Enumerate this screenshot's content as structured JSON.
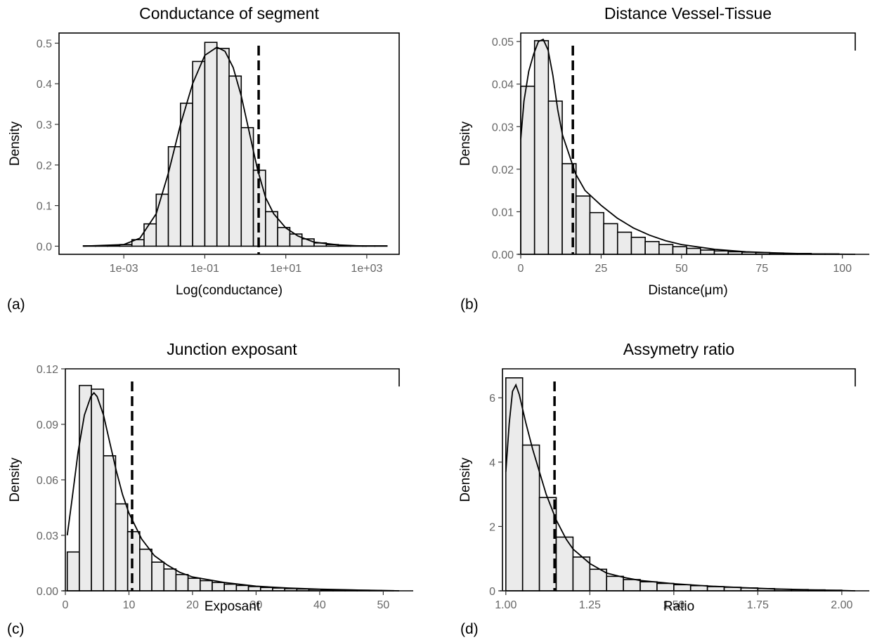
{
  "chart_data": [
    {
      "type": "bar",
      "panel_label": "(a)",
      "title": "Conductance of segment",
      "xlabel": "Log(conductance)",
      "ylabel": "Density",
      "x_scale": "log10",
      "xlim": [
        -4.6,
        3.8
      ],
      "ylim": [
        -0.02,
        0.525
      ],
      "xticks": [
        {
          "value": -3,
          "label": "1e-03"
        },
        {
          "value": -1,
          "label": "1e-01"
        },
        {
          "value": 1,
          "label": "1e+01"
        },
        {
          "value": 3,
          "label": "1e+03"
        }
      ],
      "yticks": [
        {
          "value": 0,
          "label": "0.0"
        },
        {
          "value": 0.1,
          "label": "0.1"
        },
        {
          "value": 0.2,
          "label": "0.2"
        },
        {
          "value": 0.3,
          "label": "0.3"
        },
        {
          "value": 0.4,
          "label": "0.4"
        },
        {
          "value": 0.5,
          "label": "0.5"
        }
      ],
      "bins": [
        [
          -4.0,
          -3.7,
          0.001
        ],
        [
          -3.7,
          -3.4,
          0.001
        ],
        [
          -3.4,
          -3.1,
          0.002
        ],
        [
          -3.1,
          -2.8,
          0.004
        ],
        [
          -2.8,
          -2.5,
          0.016
        ],
        [
          -2.5,
          -2.2,
          0.055
        ],
        [
          -2.2,
          -1.9,
          0.128
        ],
        [
          -1.9,
          -1.6,
          0.245
        ],
        [
          -1.6,
          -1.3,
          0.352
        ],
        [
          -1.3,
          -1.0,
          0.455
        ],
        [
          -1.0,
          -0.7,
          0.502
        ],
        [
          -0.7,
          -0.4,
          0.487
        ],
        [
          -0.4,
          -0.1,
          0.419
        ],
        [
          -0.1,
          0.2,
          0.292
        ],
        [
          0.2,
          0.5,
          0.187
        ],
        [
          0.5,
          0.8,
          0.085
        ],
        [
          0.8,
          1.1,
          0.046
        ],
        [
          1.1,
          1.4,
          0.03
        ],
        [
          1.4,
          1.7,
          0.018
        ],
        [
          1.7,
          2.0,
          0.008
        ],
        [
          2.0,
          2.3,
          0.004
        ],
        [
          2.3,
          2.6,
          0.002
        ],
        [
          2.6,
          2.9,
          0.001
        ],
        [
          2.9,
          3.2,
          0.001
        ],
        [
          3.2,
          3.5,
          0.001
        ]
      ],
      "density": [
        [
          -4.0,
          0.0
        ],
        [
          -3.0,
          0.004
        ],
        [
          -2.6,
          0.02
        ],
        [
          -2.2,
          0.08
        ],
        [
          -1.9,
          0.18
        ],
        [
          -1.6,
          0.3
        ],
        [
          -1.3,
          0.4
        ],
        [
          -1.0,
          0.47
        ],
        [
          -0.7,
          0.49
        ],
        [
          -0.5,
          0.48
        ],
        [
          -0.3,
          0.44
        ],
        [
          -0.1,
          0.37
        ],
        [
          0.1,
          0.28
        ],
        [
          0.3,
          0.19
        ],
        [
          0.5,
          0.12
        ],
        [
          0.7,
          0.08
        ],
        [
          1.0,
          0.045
        ],
        [
          1.3,
          0.025
        ],
        [
          1.7,
          0.01
        ],
        [
          2.3,
          0.003
        ],
        [
          3.0,
          0.0
        ]
      ],
      "vline": 0.33,
      "frame": "full"
    },
    {
      "type": "bar",
      "panel_label": "(b)",
      "title": "Distance Vessel-Tissue",
      "xlabel": "Distance(μm)",
      "ylabel": "Density",
      "xlim": [
        0,
        104
      ],
      "ylim": [
        0,
        0.052
      ],
      "xticks": [
        {
          "value": 0,
          "label": "0"
        },
        {
          "value": 25,
          "label": "25"
        },
        {
          "value": 50,
          "label": "50"
        },
        {
          "value": 75,
          "label": "75"
        },
        {
          "value": 100,
          "label": "100"
        }
      ],
      "yticks": [
        {
          "value": 0,
          "label": "0.00"
        },
        {
          "value": 0.01,
          "label": "0.01"
        },
        {
          "value": 0.02,
          "label": "0.02"
        },
        {
          "value": 0.03,
          "label": "0.03"
        },
        {
          "value": 0.04,
          "label": "0.04"
        },
        {
          "value": 0.05,
          "label": "0.05"
        }
      ],
      "bins": [
        [
          0,
          4.3,
          0.0395
        ],
        [
          4.3,
          8.6,
          0.0502
        ],
        [
          8.6,
          12.9,
          0.036
        ],
        [
          12.9,
          17.2,
          0.0213
        ],
        [
          17.2,
          21.5,
          0.0137
        ],
        [
          21.5,
          25.8,
          0.0098
        ],
        [
          25.8,
          30.1,
          0.0072
        ],
        [
          30.1,
          34.4,
          0.0052
        ],
        [
          34.4,
          38.7,
          0.004
        ],
        [
          38.7,
          43.0,
          0.003
        ],
        [
          43.0,
          47.3,
          0.0023
        ],
        [
          47.3,
          51.6,
          0.0018
        ],
        [
          51.6,
          55.9,
          0.0014
        ],
        [
          55.9,
          60.2,
          0.001
        ],
        [
          60.2,
          64.5,
          0.0008
        ],
        [
          64.5,
          68.8,
          0.0006
        ],
        [
          68.8,
          73.1,
          0.0005
        ],
        [
          73.1,
          77.4,
          0.0004
        ],
        [
          77.4,
          81.7,
          0.0003
        ],
        [
          81.7,
          86.0,
          0.0002
        ],
        [
          86.0,
          90.3,
          0.0002
        ],
        [
          90.3,
          94.6,
          0.0001
        ],
        [
          94.6,
          98.9,
          0.0001
        ]
      ],
      "density": [
        [
          0,
          0.027
        ],
        [
          1,
          0.036
        ],
        [
          2.5,
          0.043
        ],
        [
          4,
          0.047
        ],
        [
          5.5,
          0.05
        ],
        [
          7,
          0.0505
        ],
        [
          8.5,
          0.048
        ],
        [
          10,
          0.042
        ],
        [
          11.5,
          0.034
        ],
        [
          13,
          0.028
        ],
        [
          15,
          0.0235
        ],
        [
          17,
          0.019
        ],
        [
          20,
          0.015
        ],
        [
          25,
          0.0115
        ],
        [
          30,
          0.0085
        ],
        [
          35,
          0.0062
        ],
        [
          40,
          0.0045
        ],
        [
          45,
          0.0032
        ],
        [
          50,
          0.0023
        ],
        [
          60,
          0.0012
        ],
        [
          70,
          0.0006
        ],
        [
          80,
          0.0003
        ],
        [
          90,
          0.0001
        ],
        [
          104,
          0.0
        ]
      ],
      "vline": 16.2,
      "frame": "open"
    },
    {
      "type": "bar",
      "panel_label": "(c)",
      "title": "Junction exposant",
      "xlabel": "Exposant",
      "ylabel": "Density",
      "xlim": [
        0,
        52.5
      ],
      "ylim": [
        0,
        0.12
      ],
      "xticks": [
        {
          "value": 0,
          "label": "0"
        },
        {
          "value": 10,
          "label": "10"
        },
        {
          "value": 20,
          "label": "20"
        },
        {
          "value": 30,
          "label": "30"
        },
        {
          "value": 40,
          "label": "40"
        },
        {
          "value": 50,
          "label": "50"
        }
      ],
      "yticks": [
        {
          "value": 0,
          "label": "0.00"
        },
        {
          "value": 0.03,
          "label": "0.03"
        },
        {
          "value": 0.06,
          "label": "0.06"
        },
        {
          "value": 0.09,
          "label": "0.09"
        },
        {
          "value": 0.12,
          "label": "0.12"
        }
      ],
      "bins": [
        [
          0.3,
          2.2,
          0.021
        ],
        [
          2.2,
          4.1,
          0.111
        ],
        [
          4.1,
          6.0,
          0.109
        ],
        [
          6.0,
          7.9,
          0.073
        ],
        [
          7.9,
          9.8,
          0.047
        ],
        [
          9.8,
          11.7,
          0.032
        ],
        [
          11.7,
          13.6,
          0.0225
        ],
        [
          13.6,
          15.5,
          0.0155
        ],
        [
          15.5,
          17.4,
          0.0118
        ],
        [
          17.4,
          19.3,
          0.0088
        ],
        [
          19.3,
          21.2,
          0.0068
        ],
        [
          21.2,
          23.1,
          0.0055
        ],
        [
          23.1,
          25.0,
          0.0045
        ],
        [
          25.0,
          26.9,
          0.0036
        ],
        [
          26.9,
          28.8,
          0.0029
        ],
        [
          28.8,
          30.7,
          0.0023
        ],
        [
          30.7,
          32.6,
          0.0018
        ],
        [
          32.6,
          34.5,
          0.0015
        ],
        [
          34.5,
          36.4,
          0.0012
        ],
        [
          36.4,
          38.3,
          0.001
        ],
        [
          38.3,
          40.2,
          0.0008
        ],
        [
          40.2,
          42.1,
          0.0006
        ],
        [
          42.1,
          44.0,
          0.0005
        ],
        [
          44.0,
          45.9,
          0.0004
        ],
        [
          45.9,
          47.8,
          0.0003
        ],
        [
          47.8,
          49.7,
          0.0002
        ],
        [
          49.7,
          51.6,
          0.0001
        ]
      ],
      "density": [
        [
          0.3,
          0.03
        ],
        [
          1,
          0.048
        ],
        [
          2,
          0.075
        ],
        [
          3,
          0.095
        ],
        [
          4,
          0.105
        ],
        [
          4.5,
          0.107
        ],
        [
          5,
          0.105
        ],
        [
          6,
          0.095
        ],
        [
          7,
          0.08
        ],
        [
          8,
          0.065
        ],
        [
          9,
          0.052
        ],
        [
          10,
          0.042
        ],
        [
          12,
          0.028
        ],
        [
          14,
          0.019
        ],
        [
          16,
          0.014
        ],
        [
          18,
          0.01
        ],
        [
          20,
          0.0075
        ],
        [
          25,
          0.0045
        ],
        [
          30,
          0.0025
        ],
        [
          35,
          0.0015
        ],
        [
          40,
          0.0009
        ],
        [
          45,
          0.0005
        ],
        [
          50,
          0.0002
        ],
        [
          52.5,
          0.0
        ]
      ],
      "vline": 10.5,
      "frame": "open"
    },
    {
      "type": "bar",
      "panel_label": "(d)",
      "title": "Assymetry ratio",
      "xlabel": "Ratio",
      "ylabel": "Density",
      "xlim": [
        0.99,
        2.04
      ],
      "ylim": [
        0,
        6.9
      ],
      "xticks": [
        {
          "value": 1.0,
          "label": "1.00"
        },
        {
          "value": 1.25,
          "label": "1.25"
        },
        {
          "value": 1.5,
          "label": "1.50"
        },
        {
          "value": 1.75,
          "label": "1.75"
        },
        {
          "value": 2.0,
          "label": "2.00"
        }
      ],
      "yticks": [
        {
          "value": 0,
          "label": "0"
        },
        {
          "value": 2,
          "label": "2"
        },
        {
          "value": 4,
          "label": "4"
        },
        {
          "value": 6,
          "label": "6"
        }
      ],
      "bins": [
        [
          1.0,
          1.05,
          6.62
        ],
        [
          1.05,
          1.1,
          4.53
        ],
        [
          1.1,
          1.15,
          2.9
        ],
        [
          1.15,
          1.2,
          1.67
        ],
        [
          1.2,
          1.25,
          1.05
        ],
        [
          1.25,
          1.3,
          0.67
        ],
        [
          1.3,
          1.35,
          0.45
        ],
        [
          1.35,
          1.4,
          0.35
        ],
        [
          1.4,
          1.45,
          0.28
        ],
        [
          1.45,
          1.5,
          0.23
        ],
        [
          1.5,
          1.55,
          0.19
        ],
        [
          1.55,
          1.6,
          0.16
        ],
        [
          1.6,
          1.65,
          0.13
        ],
        [
          1.65,
          1.7,
          0.11
        ],
        [
          1.7,
          1.75,
          0.09
        ],
        [
          1.75,
          1.8,
          0.07
        ],
        [
          1.8,
          1.85,
          0.05
        ],
        [
          1.85,
          1.9,
          0.04
        ],
        [
          1.9,
          1.95,
          0.03
        ],
        [
          1.95,
          2.0,
          0.02
        ]
      ],
      "density": [
        [
          1.0,
          3.7
        ],
        [
          1.01,
          5.2
        ],
        [
          1.02,
          6.2
        ],
        [
          1.03,
          6.4
        ],
        [
          1.04,
          6.1
        ],
        [
          1.06,
          5.2
        ],
        [
          1.08,
          4.4
        ],
        [
          1.1,
          3.7
        ],
        [
          1.12,
          3.0
        ],
        [
          1.15,
          2.2
        ],
        [
          1.18,
          1.6
        ],
        [
          1.2,
          1.3
        ],
        [
          1.25,
          0.85
        ],
        [
          1.3,
          0.55
        ],
        [
          1.35,
          0.42
        ],
        [
          1.4,
          0.32
        ],
        [
          1.5,
          0.22
        ],
        [
          1.6,
          0.15
        ],
        [
          1.7,
          0.1
        ],
        [
          1.8,
          0.06
        ],
        [
          1.9,
          0.03
        ],
        [
          2.0,
          0.01
        ],
        [
          2.04,
          0.0
        ]
      ],
      "vline": 1.145,
      "frame": "open"
    }
  ]
}
